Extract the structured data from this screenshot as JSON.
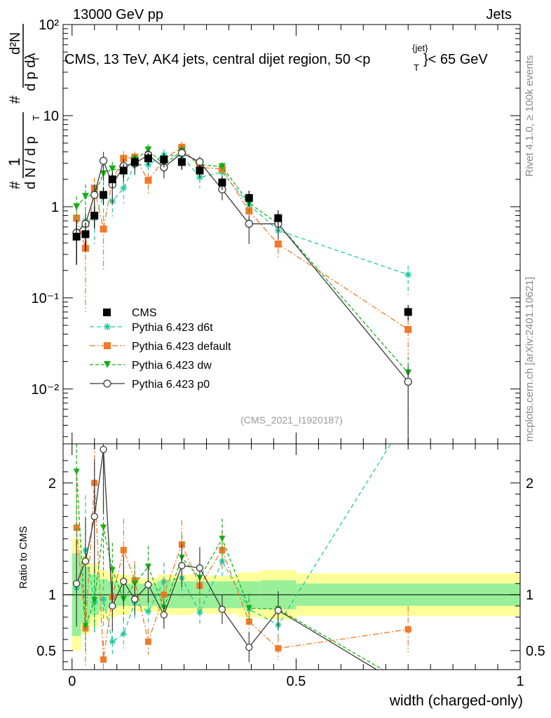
{
  "header": {
    "left": "13000 GeV pp",
    "right": "Jets"
  },
  "side_labels": {
    "rivet": "Rivet 4.1.0, ≥ 100k events",
    "mcplots": "mcplots.cern.ch [arXiv:2401.10621]"
  },
  "chart_data": {
    "type": "line",
    "title": "CMS, 13 TeV, AK4 jets, central dijet region, 50 < p_T^{jet} < 65 GeV",
    "title_parts": {
      "main": "CMS, 13 TeV, AK4 jets, central dijet region, 50 <p",
      "sup": "{jet}",
      "sub": "T",
      "tail": "}< 65 GeV"
    },
    "analysis_id": "(CMS_2021_I1920187)",
    "xlabel": "width (charged-only)",
    "ylabel": "# 1 / dN/dp_T # d²N / dp_T dλ",
    "ylabel_parts": {
      "hash1": "#",
      "one": "1",
      "dndpt": "d N / d p",
      "t1": "T",
      "hash2": "#",
      "d2n": "d²N",
      "dptdl": "d p  dλ",
      "t2": "T"
    },
    "ratio_ylabel": "Ratio to CMS",
    "xlim": [
      -0.02,
      1.0
    ],
    "ylim": [
      0.0025,
      100
    ],
    "ratio_ylim": [
      0.33,
      2.35
    ],
    "x_ticks": [
      "0",
      "0.5",
      "1"
    ],
    "y_ticks": [
      "10⁻²",
      "10⁻¹",
      "1",
      "10",
      "10²"
    ],
    "ratio_ticks": [
      "0.5",
      "1",
      "2"
    ],
    "x": [
      0.01,
      0.03,
      0.05,
      0.07,
      0.09,
      0.115,
      0.14,
      0.17,
      0.205,
      0.245,
      0.285,
      0.335,
      0.395,
      0.46,
      0.75
    ],
    "bin_edges": [
      0.0,
      0.02,
      0.04,
      0.06,
      0.08,
      0.1,
      0.13,
      0.15,
      0.19,
      0.22,
      0.27,
      0.3,
      0.37,
      0.42,
      0.5,
      1.0
    ],
    "cms": {
      "name": "CMS",
      "values": [
        0.47,
        0.5,
        0.8,
        1.35,
        2.0,
        2.5,
        3.1,
        3.4,
        3.3,
        3.1,
        2.5,
        1.85,
        1.25,
        0.75,
        0.07
      ],
      "band_inner": [
        0.37,
        0.25,
        0.18,
        0.14,
        0.12,
        0.1,
        0.1,
        0.1,
        0.12,
        0.12,
        0.12,
        0.12,
        0.12,
        0.13,
        0.1
      ],
      "band_outer": [
        0.5,
        0.35,
        0.28,
        0.22,
        0.2,
        0.18,
        0.15,
        0.15,
        0.18,
        0.18,
        0.16,
        0.17,
        0.2,
        0.22,
        0.19
      ]
    },
    "series": [
      {
        "name": "Pythia 6.423 d6t",
        "color": "#20c9a0",
        "marker": "star",
        "dash": "6,4",
        "values": [
          0.5,
          0.7,
          0.75,
          1.3,
          1.15,
          1.6,
          2.9,
          2.9,
          3.7,
          3.6,
          2.1,
          2.4,
          1.05,
          0.55,
          0.18
        ],
        "ratio": [
          1.06,
          1.4,
          0.93,
          0.96,
          0.58,
          0.65,
          0.93,
          0.85,
          1.12,
          1.15,
          0.84,
          1.3,
          0.87,
          0.73,
          2.6
        ],
        "err": [
          0.3,
          0.35,
          0.3,
          0.25,
          0.2,
          0.2,
          0.15,
          0.15,
          0.15,
          0.15,
          0.15,
          0.12,
          0.12,
          0.15,
          0.25
        ]
      },
      {
        "name": "Pythia 6.423 default",
        "color": "#f07a2a",
        "marker": "square",
        "dash": "8,3,2,3",
        "values": [
          0.75,
          0.35,
          1.6,
          0.57,
          2.0,
          3.4,
          3.5,
          1.95,
          3.3,
          4.5,
          2.7,
          2.6,
          0.9,
          0.39,
          0.045
        ],
        "ratio": [
          1.6,
          0.7,
          2.0,
          0.42,
          0.98,
          1.4,
          1.13,
          0.58,
          1.0,
          1.45,
          1.08,
          1.4,
          0.76,
          0.52,
          0.69
        ],
        "err": [
          0.3,
          0.5,
          0.3,
          0.4,
          0.2,
          0.2,
          0.15,
          0.2,
          0.15,
          0.15,
          0.15,
          0.12,
          0.15,
          0.2,
          0.3
        ]
      },
      {
        "name": "Pythia 6.423 dw",
        "color": "#16b016",
        "marker": "triangle",
        "dash": "5,3",
        "values": [
          1.0,
          1.3,
          1.35,
          2.3,
          2.6,
          2.5,
          3.3,
          4.2,
          2.9,
          4.1,
          2.9,
          2.75,
          1.1,
          0.65,
          0.015
        ],
        "ratio": [
          2.1,
          0.72,
          0.95,
          1.6,
          1.22,
          0.96,
          1.1,
          1.25,
          0.88,
          1.33,
          1.15,
          1.5,
          0.88,
          0.87,
          0.2
        ],
        "err": [
          0.3,
          0.35,
          0.3,
          0.25,
          0.2,
          0.2,
          0.15,
          0.15,
          0.15,
          0.15,
          0.15,
          0.12,
          0.15,
          0.15,
          0.5
        ]
      },
      {
        "name": "Pythia 6.423 p0",
        "color": "#3a3a3a",
        "marker": "circle",
        "dash": "",
        "values": [
          0.52,
          0.65,
          1.35,
          3.2,
          1.75,
          2.8,
          3.0,
          3.7,
          2.7,
          3.9,
          3.1,
          1.55,
          0.65,
          0.65,
          0.012
        ],
        "ratio": [
          1.1,
          1.3,
          1.7,
          2.3,
          0.9,
          1.12,
          0.96,
          1.09,
          0.82,
          1.26,
          1.24,
          0.87,
          0.53,
          0.86,
          0.16
        ],
        "err": [
          0.35,
          0.3,
          0.3,
          0.25,
          0.25,
          0.2,
          0.15,
          0.15,
          0.15,
          0.15,
          0.15,
          0.15,
          0.25,
          0.2,
          0.5
        ]
      }
    ],
    "legend_placement": "lower-left"
  }
}
